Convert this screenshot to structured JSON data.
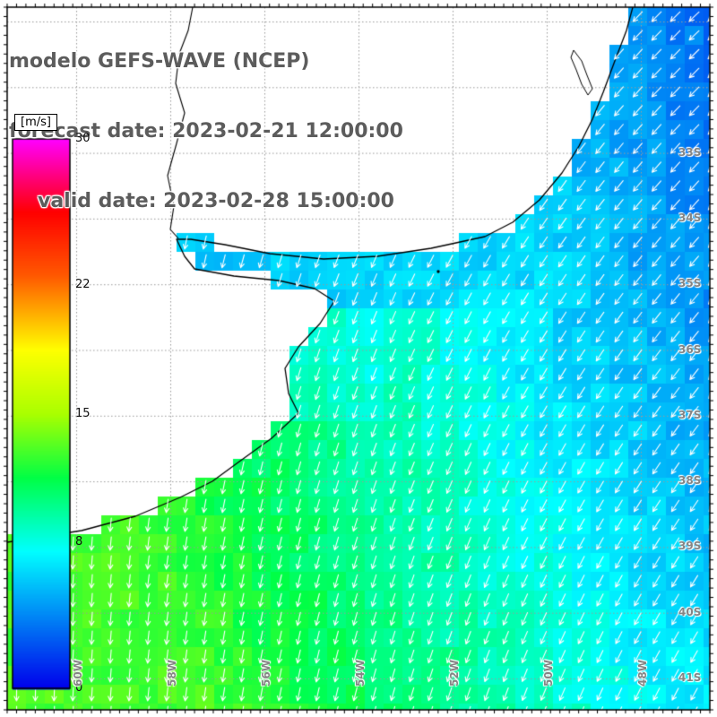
{
  "title": {
    "line1": "modelo GEFS-WAVE (NCEP)",
    "line2": "forecast date: 2023-02-21 12:00:00",
    "line3": "valid date: 2023-02-28 15:00:00",
    "color": "#5c5c5c"
  },
  "colorbar": {
    "unit": "[m/s]",
    "min": 0,
    "max": 30,
    "tick_labels": [
      "30",
      "22",
      "15",
      "8",
      "0"
    ],
    "tick_values": [
      30,
      22,
      15,
      8,
      0
    ],
    "stops": [
      [
        0,
        "#0000eb"
      ],
      [
        7.5,
        "#00ffff"
      ],
      [
        11.5,
        "#00ff46"
      ],
      [
        15,
        "#aaff00"
      ],
      [
        18.5,
        "#ffff00"
      ],
      [
        22.5,
        "#ff5a00"
      ],
      [
        26,
        "#ff0000"
      ],
      [
        30,
        "#ff00ff"
      ]
    ]
  },
  "map": {
    "lat_labels": [
      "33S",
      "34S",
      "35S",
      "36S",
      "37S",
      "38S",
      "39S",
      "40S",
      "41S"
    ],
    "lon_labels": [
      "60W",
      "58W",
      "56W",
      "54W",
      "52W",
      "50W",
      "48W"
    ],
    "label_color": "#858585",
    "grid_color": "#9a9a9a",
    "coast_color": "#000000",
    "arrow_color": "#ffffff",
    "land_color": "#ffffff"
  },
  "chart_data": {
    "type": "heatmap",
    "variable": "wind/wave speed field with direction vectors",
    "units": "m/s",
    "model": "GEFS-WAVE (NCEP)",
    "forecast_date": "2023-02-21 12:00:00",
    "valid_date": "2023-02-28 15:00:00",
    "region": "South Atlantic off the Rio de la Plata (~31S-41S, ~60W-48W)",
    "colorbar_range": [
      0,
      30
    ],
    "colorbar_ticks": [
      0,
      8,
      15,
      22,
      30
    ],
    "lat_ticks": [
      "33S",
      "34S",
      "35S",
      "36S",
      "37S",
      "38S",
      "39S",
      "40S",
      "41S"
    ],
    "lon_ticks": [
      "60W",
      "58W",
      "56W",
      "54W",
      "52W",
      "50W",
      "48W"
    ],
    "speed_grid_note": "approximate speeds in m/s sampled on an 8x8 grid over the map, rows N to S, cols W to E, null = land",
    "speed_grid": [
      [
        null,
        null,
        null,
        null,
        null,
        null,
        null,
        4.0
      ],
      [
        null,
        null,
        null,
        null,
        null,
        null,
        null,
        4.2
      ],
      [
        null,
        null,
        null,
        null,
        null,
        null,
        5.7,
        4.5
      ],
      [
        null,
        null,
        null,
        null,
        8.4,
        7.2,
        6.1,
        4.9
      ],
      [
        null,
        null,
        null,
        9.0,
        8.8,
        7.6,
        6.5,
        5.3
      ],
      [
        null,
        null,
        11.5,
        10.4,
        9.2,
        8.1,
        7.0,
        5.8
      ],
      [
        13.0,
        12.9,
        12.0,
        10.9,
        9.8,
        8.6,
        7.5,
        6.4
      ],
      [
        13.0,
        13.0,
        12.6,
        11.4,
        10.3,
        9.2,
        8.1,
        7.0
      ]
    ],
    "direction_toward_deg_w_to_e": [
      185,
      188,
      192,
      197,
      203,
      210,
      218,
      225
    ],
    "direction_note": "white arrows point roughly S in the southwest of the map, veering to SW in the east/northeast"
  }
}
